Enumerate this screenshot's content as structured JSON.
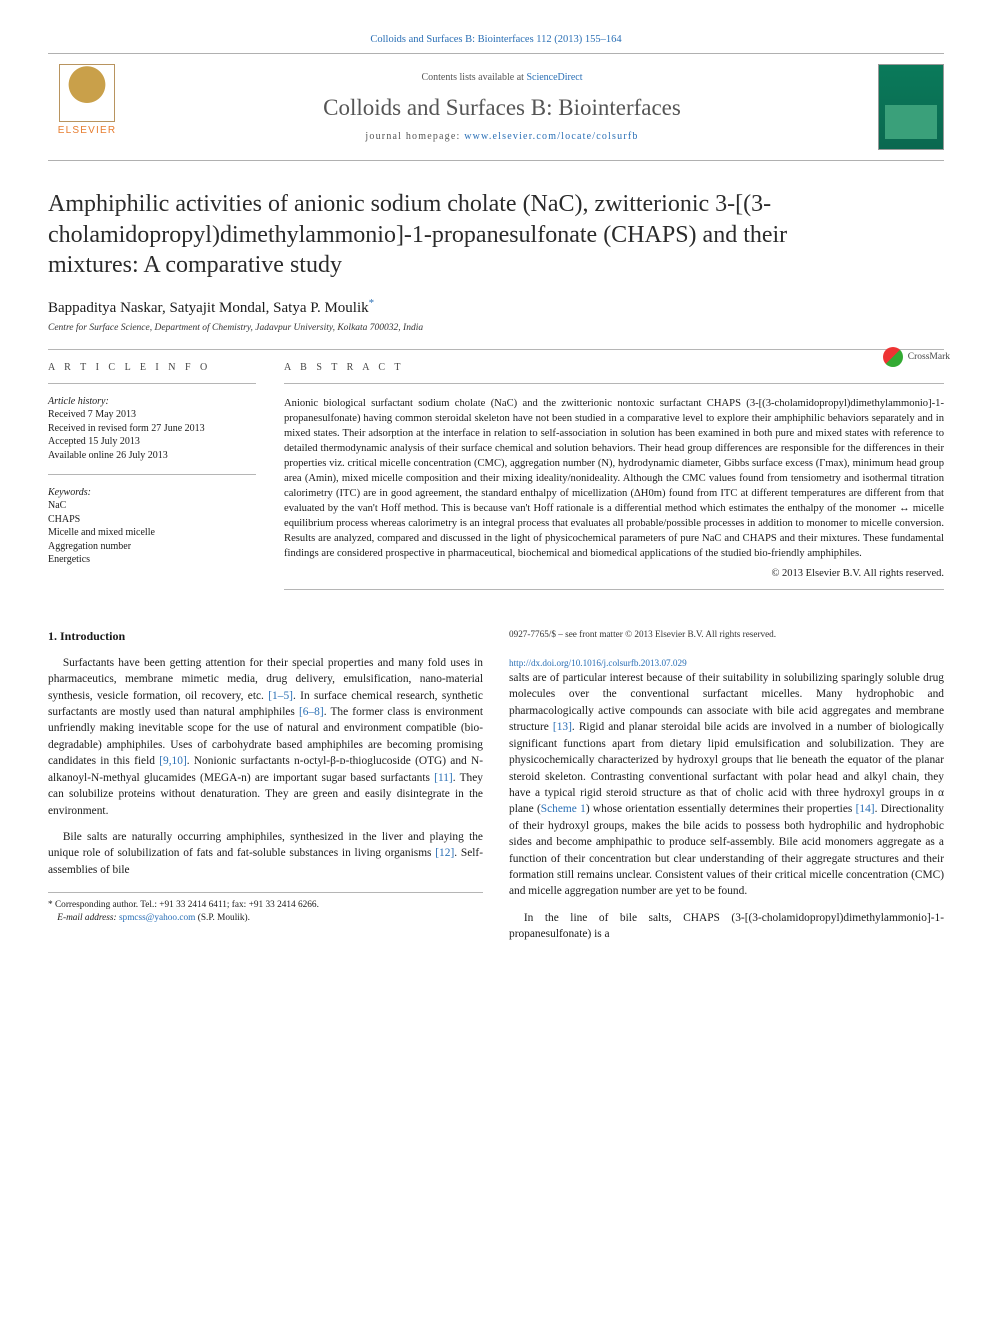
{
  "header": {
    "running_head": "Colloids and Surfaces B: Biointerfaces 112 (2013) 155–164",
    "contents_prefix": "Contents lists available at ",
    "contents_link": "ScienceDirect",
    "journal_name": "Colloids and Surfaces B: Biointerfaces",
    "homepage_prefix": "journal homepage: ",
    "homepage_link": "www.elsevier.com/locate/colsurfb",
    "publisher_word": "ELSEVIER",
    "crossmark": "CrossMark"
  },
  "article": {
    "title": "Amphiphilic activities of anionic sodium cholate (NaC), zwitterionic 3-[(3-cholamidopropyl)dimethylammonio]-1-propanesulfonate (CHAPS) and their mixtures: A comparative study",
    "authors_line": "Bappaditya Naskar, Satyajit Mondal, Satya P. Moulik",
    "corr_symbol": "*",
    "affiliation": "Centre for Surface Science, Department of Chemistry, Jadavpur University, Kolkata 700032, India"
  },
  "info": {
    "section_label": "A R T I C L E   I N F O",
    "history_label": "Article history:",
    "history": [
      "Received 7 May 2013",
      "Received in revised form 27 June 2013",
      "Accepted 15 July 2013",
      "Available online 26 July 2013"
    ],
    "keywords_label": "Keywords:",
    "keywords": [
      "NaC",
      "CHAPS",
      "Micelle and mixed micelle",
      "Aggregation number",
      "Energetics"
    ]
  },
  "abstract": {
    "section_label": "A B S T R A C T",
    "text": "Anionic biological surfactant sodium cholate (NaC) and the zwitterionic nontoxic surfactant CHAPS (3-[(3-cholamidopropyl)dimethylammonio]-1-propanesulfonate) having common steroidal skeleton have not been studied in a comparative level to explore their amphiphilic behaviors separately and in mixed states. Their adsorption at the interface in relation to self-association in solution has been examined in both pure and mixed states with reference to detailed thermodynamic analysis of their surface chemical and solution behaviors. Their head group differences are responsible for the differences in their properties viz. critical micelle concentration (CMC), aggregation number (N), hydrodynamic diameter, Gibbs surface excess (Γmax), minimum head group area (Amin), mixed micelle composition and their mixing ideality/nonideality. Although the CMC values found from tensiometry and isothermal titration calorimetry (ITC) are in good agreement, the standard enthalpy of micellization (ΔH0m) found from ITC at different temperatures are different from that evaluated by the van't Hoff method. This is because van't Hoff rationale is a differential method which estimates the enthalpy of the monomer ↔ micelle equilibrium process whereas calorimetry is an integral process that evaluates all probable/possible processes in addition to monomer to micelle conversion. Results are analyzed, compared and discussed in the light of physicochemical parameters of pure NaC and CHAPS and their mixtures. These fundamental findings are considered prospective in pharmaceutical, biochemical and biomedical applications of the studied bio-friendly amphiphiles.",
    "copyright": "© 2013 Elsevier B.V. All rights reserved."
  },
  "body": {
    "heading": "1. Introduction",
    "p1_a": "Surfactants have been getting attention for their special properties and many fold uses in pharmaceutics, membrane mimetic media, drug delivery, emulsification, nano-material synthesis, vesicle formation, oil recovery, etc. ",
    "p1_ref1": "[1–5]",
    "p1_b": ". In surface chemical research, synthetic surfactants are mostly used than natural amphiphiles ",
    "p1_ref2": "[6–8]",
    "p1_c": ". The former class is environment unfriendly making inevitable scope for the use of natural and environment compatible (bio-degradable) amphiphiles. Uses of carbohydrate based amphiphiles are becoming promising candidates in this field ",
    "p1_ref3": "[9,10]",
    "p1_d": ". Nonionic surfactants n-octyl-β-ᴅ-thioglucoside (OTG) and N-alkanoyl-N-methyal glucamides (MEGA-n) are important sugar based surfactants ",
    "p1_ref4": "[11]",
    "p1_e": ". They can solubilize proteins without denaturation. They are green and easily disintegrate in the environment.",
    "p2_a": "Bile salts are naturally occurring amphiphiles, synthesized in the liver and playing the unique role of solubilization of fats and fat-soluble substances in living organisms ",
    "p2_ref1": "[12]",
    "p2_b": ". Self-assemblies of bile",
    "p3_a": "salts are of particular interest because of their suitability in solubilizing sparingly soluble drug molecules over the conventional surfactant micelles. Many hydrophobic and pharmacologically active compounds can associate with bile acid aggregates and membrane structure ",
    "p3_ref1": "[13]",
    "p3_b": ". Rigid and planar steroidal bile acids are involved in a number of biologically significant functions apart from dietary lipid emulsification and solubilization. They are physicochemically characterized by hydroxyl groups that lie beneath the equator of the planar steroid skeleton. Contrasting conventional surfactant with polar head and alkyl chain, they have a typical rigid steroid structure as that of cholic acid with three hydroxyl groups in α plane (",
    "p3_ref_scheme": "Scheme 1",
    "p3_c": ") whose orientation essentially determines their properties ",
    "p3_ref2": "[14]",
    "p3_d": ". Directionality of their hydroxyl groups, makes the bile acids to possess both hydrophilic and hydrophobic sides and become amphipathic to produce self-assembly. Bile acid monomers aggregate as a function of their concentration but clear understanding of their aggregate structures and their formation still remains unclear. Consistent values of their critical micelle concentration (CMC) and micelle aggregation number are yet to be found.",
    "p4": "In the line of bile salts, CHAPS (3-[(3-cholamidopropyl)dimethylammonio]-1-propanesulfonate) is a"
  },
  "footnotes": {
    "corr_line": "* Corresponding author. Tel.: +91 33 2414 6411; fax: +91 33 2414 6266.",
    "email_label": "E-mail address: ",
    "email": "spmcss@yahoo.com",
    "email_owner": " (S.P. Moulik).",
    "issn_line": "0927-7765/$ – see front matter © 2013 Elsevier B.V. All rights reserved.",
    "doi_link": "http://dx.doi.org/10.1016/j.colsurfb.2013.07.029"
  },
  "colors": {
    "link": "#2a6fb5",
    "rule": "#b5b5b5",
    "elsevier_orange": "#e77c2e",
    "cover_green": "#0a7a5a",
    "text": "#1a1a1a"
  },
  "typography": {
    "title_pt": 24,
    "journal_pt": 23,
    "authors_pt": 15,
    "body_pt": 11.4,
    "abstract_pt": 10.6,
    "info_pt": 10,
    "footnote_pt": 9.3
  }
}
